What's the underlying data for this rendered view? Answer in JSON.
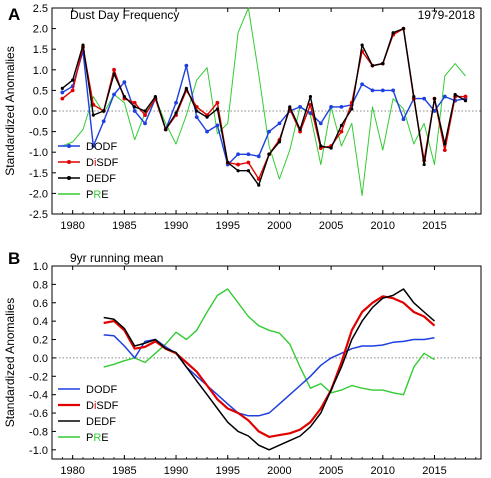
{
  "chart_data": [
    {
      "type": "line",
      "panel_label": "A",
      "title": "Dust Day Frequency",
      "period": "1979-2018",
      "ylabel": "Standardized Anomalies",
      "xlim": [
        1978,
        2019.5
      ],
      "ylim": [
        -2.5,
        2.5
      ],
      "xticks": [
        "1980",
        "1985",
        "1990",
        "1995",
        "2000",
        "2005",
        "2010",
        "2015"
      ],
      "yticks": [
        "2.5",
        "2.0",
        "1.5",
        "1.0",
        "0.5",
        "0.0",
        "-0.5",
        "-1.0",
        "-1.5",
        "-2.0",
        "-2.5"
      ],
      "x": [
        1979,
        1980,
        1981,
        1982,
        1983,
        1984,
        1985,
        1986,
        1987,
        1988,
        1989,
        1990,
        1991,
        1992,
        1993,
        1994,
        1995,
        1996,
        1997,
        1998,
        1999,
        2000,
        2001,
        2002,
        2003,
        2004,
        2005,
        2006,
        2007,
        2008,
        2009,
        2010,
        2011,
        2012,
        2013,
        2014,
        2015,
        2016,
        2017,
        2018
      ],
      "series": [
        {
          "name": "DODF",
          "color": "#1f3fe0",
          "values": [
            0.45,
            0.6,
            1.45,
            -0.85,
            -0.25,
            0.4,
            0.7,
            0.0,
            -0.3,
            0.3,
            -0.45,
            0.2,
            1.1,
            -0.15,
            -0.5,
            -0.35,
            -1.3,
            -1.05,
            -1.05,
            -1.1,
            -0.5,
            -0.3,
            0.0,
            0.1,
            -0.05,
            -0.3,
            0.1,
            0.1,
            0.15,
            0.65,
            0.5,
            0.5,
            0.5,
            -0.2,
            0.3,
            0.3,
            0.0,
            0.35,
            0.25,
            0.3
          ]
        },
        {
          "name": "DiSDF",
          "color": "#e00000",
          "values": [
            0.3,
            0.5,
            1.55,
            0.15,
            0.0,
            1.0,
            0.3,
            0.2,
            -0.1,
            0.3,
            -0.45,
            -0.1,
            0.5,
            0.1,
            -0.1,
            0.2,
            -1.25,
            -1.3,
            -1.25,
            -1.65,
            -1.05,
            -0.7,
            0.05,
            -0.5,
            0.15,
            -0.9,
            -0.85,
            -0.5,
            0.2,
            1.45,
            1.1,
            1.15,
            1.85,
            2.0,
            0.3,
            -1.2,
            0.3,
            -0.95,
            0.35,
            0.35
          ]
        },
        {
          "name": "DEDF",
          "color": "#000000",
          "values": [
            0.55,
            0.75,
            1.6,
            -0.1,
            0.0,
            0.9,
            0.35,
            0.1,
            0.0,
            0.35,
            -0.45,
            -0.05,
            0.55,
            0.0,
            -0.15,
            0.05,
            -1.25,
            -1.45,
            -1.45,
            -1.8,
            -1.05,
            -0.75,
            0.1,
            -0.45,
            0.35,
            -0.85,
            -0.9,
            -0.35,
            0.05,
            1.6,
            1.1,
            1.15,
            1.9,
            2.0,
            0.35,
            -1.3,
            0.3,
            -0.8,
            0.4,
            0.25
          ]
        },
        {
          "name": "PRE",
          "color": "#33cc33",
          "values": [
            -0.85,
            -0.75,
            -0.45,
            0.35,
            -0.05,
            0.4,
            0.2,
            -0.7,
            -0.05,
            0.3,
            -0.3,
            -0.8,
            -0.1,
            0.75,
            1.05,
            -0.55,
            -0.3,
            1.9,
            2.5,
            0.9,
            -0.85,
            -1.65,
            -0.95,
            0.1,
            -0.1,
            -1.3,
            0.1,
            -0.85,
            -0.3,
            -2.05,
            0.1,
            -0.95,
            0.3,
            0.05,
            -0.8,
            -0.3,
            -1.3,
            0.85,
            1.15,
            0.85
          ]
        }
      ]
    },
    {
      "type": "line",
      "panel_label": "B",
      "title": "9yr running mean",
      "ylabel": "Standardized Anomalies",
      "xlim": [
        1978,
        2019.5
      ],
      "ylim": [
        -1.1,
        1.0
      ],
      "xticks": [
        "1980",
        "1985",
        "1990",
        "1995",
        "2000",
        "2005",
        "2010",
        "2015"
      ],
      "yticks": [
        "1.0",
        "0.8",
        "0.6",
        "0.4",
        "0.2",
        "0.0",
        "-0.2",
        "-0.4",
        "-0.6",
        "-0.8",
        "-1.0"
      ],
      "x": [
        1983,
        1984,
        1985,
        1986,
        1987,
        1988,
        1989,
        1990,
        1991,
        1992,
        1993,
        1994,
        1995,
        1996,
        1997,
        1998,
        1999,
        2000,
        2001,
        2002,
        2003,
        2004,
        2005,
        2006,
        2007,
        2008,
        2009,
        2010,
        2011,
        2012,
        2013,
        2014,
        2015
      ],
      "series": [
        {
          "name": "DODF",
          "color": "#1f3fe0",
          "values": [
            0.25,
            0.24,
            0.13,
            0.0,
            0.18,
            0.2,
            0.12,
            0.05,
            -0.1,
            -0.2,
            -0.3,
            -0.4,
            -0.5,
            -0.6,
            -0.63,
            -0.63,
            -0.6,
            -0.5,
            -0.4,
            -0.3,
            -0.2,
            -0.08,
            0.0,
            0.05,
            0.1,
            0.13,
            0.13,
            0.14,
            0.17,
            0.18,
            0.2,
            0.2,
            0.22
          ]
        },
        {
          "name": "DiSDF",
          "color": "#e00000",
          "values": [
            0.38,
            0.4,
            0.3,
            0.1,
            0.12,
            0.18,
            0.1,
            0.05,
            -0.05,
            -0.15,
            -0.3,
            -0.45,
            -0.55,
            -0.6,
            -0.68,
            -0.8,
            -0.86,
            -0.84,
            -0.82,
            -0.78,
            -0.7,
            -0.55,
            -0.35,
            -0.05,
            0.3,
            0.5,
            0.6,
            0.67,
            0.65,
            0.6,
            0.5,
            0.45,
            0.35
          ]
        },
        {
          "name": "DEDF",
          "color": "#000000",
          "values": [
            0.44,
            0.42,
            0.32,
            0.13,
            0.16,
            0.2,
            0.1,
            0.06,
            -0.1,
            -0.25,
            -0.4,
            -0.55,
            -0.7,
            -0.8,
            -0.85,
            -0.95,
            -1.0,
            -0.95,
            -0.9,
            -0.85,
            -0.75,
            -0.6,
            -0.35,
            -0.1,
            0.2,
            0.4,
            0.55,
            0.65,
            0.68,
            0.75,
            0.6,
            0.5,
            0.4
          ]
        },
        {
          "name": "PRE",
          "color": "#33cc33",
          "values": [
            -0.1,
            -0.07,
            -0.03,
            0.0,
            -0.05,
            0.05,
            0.15,
            0.28,
            0.2,
            0.3,
            0.5,
            0.68,
            0.75,
            0.6,
            0.45,
            0.35,
            0.3,
            0.27,
            0.15,
            -0.1,
            -0.33,
            -0.28,
            -0.38,
            -0.35,
            -0.3,
            -0.33,
            -0.35,
            -0.35,
            -0.38,
            -0.4,
            -0.1,
            0.05,
            -0.02
          ]
        }
      ]
    }
  ]
}
